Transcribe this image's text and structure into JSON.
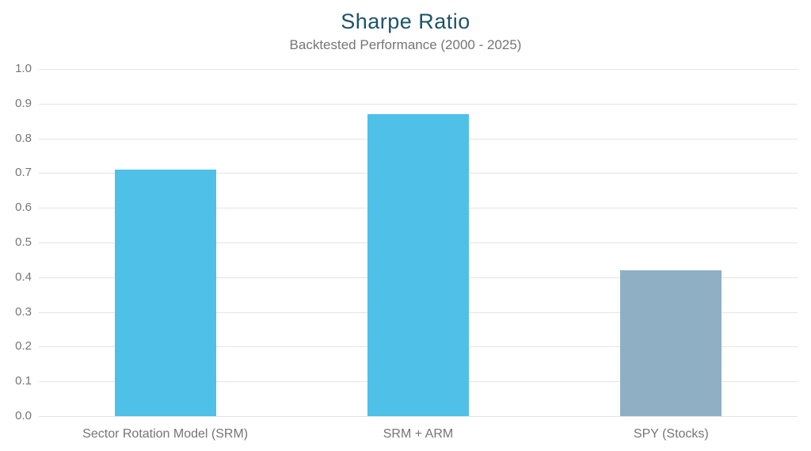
{
  "page": {
    "background": "#ffffff"
  },
  "chart_data": {
    "type": "bar",
    "title": "Sharpe Ratio",
    "subtitle": "Backtested Performance (2000 - 2025)",
    "categories": [
      "Sector Rotation Model (SRM)",
      "SRM + ARM",
      "SPY (Stocks)"
    ],
    "values": [
      0.71,
      0.87,
      0.42
    ],
    "bar_colors": [
      "#4fc0e8",
      "#4fc0e8",
      "#8fb0c4"
    ],
    "xlabel": "",
    "ylabel": "",
    "ylim": [
      0,
      1.0
    ],
    "ytick_step": 0.1,
    "ytick_labels": [
      "0.0",
      "0.1",
      "0.2",
      "0.3",
      "0.4",
      "0.5",
      "0.6",
      "0.7",
      "0.8",
      "0.9",
      "1.0"
    ],
    "grid": "horizontal",
    "legend": "none",
    "colors": {
      "title": "#1d5468",
      "text": "#757575",
      "gridline": "#e4e4e4",
      "background": "#ffffff"
    }
  }
}
